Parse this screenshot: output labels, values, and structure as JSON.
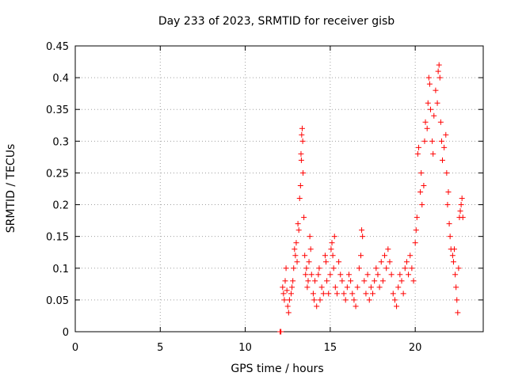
{
  "chart_data": {
    "type": "scatter",
    "title": "Day 233 of 2023, SRMTID for receiver gisb",
    "xlabel": "GPS time / hours",
    "ylabel": "SRMTID / TECUs",
    "xlim": [
      0,
      24
    ],
    "ylim": [
      0,
      0.45
    ],
    "x_ticks": [
      0,
      5,
      10,
      15,
      20
    ],
    "y_ticks": [
      0,
      0.05,
      0.1,
      0.15,
      0.2,
      0.25,
      0.3,
      0.35,
      0.4,
      0.45
    ],
    "x_tick_labels": [
      "0",
      "5",
      "10",
      "15",
      "20"
    ],
    "y_tick_labels": [
      "0",
      "0.05",
      "0.1",
      "0.15",
      "0.2",
      "0.25",
      "0.3",
      "0.35",
      "0.4",
      "0.45"
    ],
    "grid": true,
    "marker": "+",
    "color": "#ff0000",
    "series": [
      {
        "name": "SRMTID",
        "points": [
          [
            12.05,
            0.0
          ],
          [
            12.1,
            0.0
          ],
          [
            12.2,
            0.07
          ],
          [
            12.25,
            0.06
          ],
          [
            12.3,
            0.05
          ],
          [
            12.35,
            0.08
          ],
          [
            12.4,
            0.1
          ],
          [
            12.45,
            0.065
          ],
          [
            12.5,
            0.04
          ],
          [
            12.55,
            0.03
          ],
          [
            12.6,
            0.05
          ],
          [
            12.7,
            0.06
          ],
          [
            12.75,
            0.07
          ],
          [
            12.8,
            0.08
          ],
          [
            12.85,
            0.1
          ],
          [
            12.9,
            0.13
          ],
          [
            12.95,
            0.12
          ],
          [
            13.0,
            0.14
          ],
          [
            13.05,
            0.11
          ],
          [
            13.1,
            0.17
          ],
          [
            13.15,
            0.16
          ],
          [
            13.2,
            0.21
          ],
          [
            13.25,
            0.23
          ],
          [
            13.28,
            0.28
          ],
          [
            13.3,
            0.27
          ],
          [
            13.32,
            0.31
          ],
          [
            13.35,
            0.32
          ],
          [
            13.38,
            0.3
          ],
          [
            13.4,
            0.25
          ],
          [
            13.45,
            0.18
          ],
          [
            13.5,
            0.12
          ],
          [
            13.55,
            0.09
          ],
          [
            13.6,
            0.1
          ],
          [
            13.65,
            0.07
          ],
          [
            13.7,
            0.08
          ],
          [
            13.75,
            0.11
          ],
          [
            13.8,
            0.15
          ],
          [
            13.85,
            0.13
          ],
          [
            13.9,
            0.09
          ],
          [
            14.0,
            0.06
          ],
          [
            14.05,
            0.05
          ],
          [
            14.1,
            0.08
          ],
          [
            14.2,
            0.04
          ],
          [
            14.3,
            0.09
          ],
          [
            14.35,
            0.1
          ],
          [
            14.4,
            0.05
          ],
          [
            14.5,
            0.07
          ],
          [
            14.6,
            0.06
          ],
          [
            14.7,
            0.12
          ],
          [
            14.75,
            0.11
          ],
          [
            14.8,
            0.08
          ],
          [
            14.9,
            0.06
          ],
          [
            15.0,
            0.09
          ],
          [
            15.05,
            0.13
          ],
          [
            15.1,
            0.14
          ],
          [
            15.15,
            0.12
          ],
          [
            15.2,
            0.1
          ],
          [
            15.25,
            0.15
          ],
          [
            15.3,
            0.07
          ],
          [
            15.4,
            0.06
          ],
          [
            15.5,
            0.11
          ],
          [
            15.6,
            0.09
          ],
          [
            15.7,
            0.08
          ],
          [
            15.8,
            0.06
          ],
          [
            15.9,
            0.05
          ],
          [
            16.0,
            0.07
          ],
          [
            16.1,
            0.09
          ],
          [
            16.2,
            0.08
          ],
          [
            16.3,
            0.06
          ],
          [
            16.4,
            0.05
          ],
          [
            16.5,
            0.04
          ],
          [
            16.6,
            0.07
          ],
          [
            16.7,
            0.1
          ],
          [
            16.8,
            0.12
          ],
          [
            16.85,
            0.16
          ],
          [
            16.9,
            0.15
          ],
          [
            17.0,
            0.08
          ],
          [
            17.1,
            0.06
          ],
          [
            17.2,
            0.09
          ],
          [
            17.3,
            0.05
          ],
          [
            17.4,
            0.07
          ],
          [
            17.5,
            0.06
          ],
          [
            17.6,
            0.08
          ],
          [
            17.7,
            0.1
          ],
          [
            17.8,
            0.09
          ],
          [
            17.9,
            0.07
          ],
          [
            18.0,
            0.11
          ],
          [
            18.1,
            0.08
          ],
          [
            18.2,
            0.12
          ],
          [
            18.3,
            0.1
          ],
          [
            18.4,
            0.13
          ],
          [
            18.5,
            0.11
          ],
          [
            18.6,
            0.09
          ],
          [
            18.7,
            0.06
          ],
          [
            18.8,
            0.05
          ],
          [
            18.9,
            0.04
          ],
          [
            19.0,
            0.07
          ],
          [
            19.1,
            0.09
          ],
          [
            19.2,
            0.08
          ],
          [
            19.3,
            0.06
          ],
          [
            19.4,
            0.1
          ],
          [
            19.5,
            0.11
          ],
          [
            19.6,
            0.09
          ],
          [
            19.7,
            0.12
          ],
          [
            19.8,
            0.1
          ],
          [
            19.9,
            0.08
          ],
          [
            20.0,
            0.14
          ],
          [
            20.05,
            0.16
          ],
          [
            20.1,
            0.18
          ],
          [
            20.15,
            0.28
          ],
          [
            20.2,
            0.29
          ],
          [
            20.3,
            0.22
          ],
          [
            20.35,
            0.25
          ],
          [
            20.4,
            0.2
          ],
          [
            20.5,
            0.23
          ],
          [
            20.55,
            0.3
          ],
          [
            20.6,
            0.33
          ],
          [
            20.7,
            0.32
          ],
          [
            20.75,
            0.36
          ],
          [
            20.8,
            0.4
          ],
          [
            20.85,
            0.39
          ],
          [
            20.9,
            0.35
          ],
          [
            21.0,
            0.3
          ],
          [
            21.05,
            0.28
          ],
          [
            21.1,
            0.34
          ],
          [
            21.2,
            0.38
          ],
          [
            21.3,
            0.36
          ],
          [
            21.35,
            0.41
          ],
          [
            21.4,
            0.42
          ],
          [
            21.45,
            0.4
          ],
          [
            21.5,
            0.33
          ],
          [
            21.55,
            0.3
          ],
          [
            21.6,
            0.27
          ],
          [
            21.7,
            0.29
          ],
          [
            21.8,
            0.31
          ],
          [
            21.85,
            0.25
          ],
          [
            21.9,
            0.2
          ],
          [
            21.95,
            0.22
          ],
          [
            22.0,
            0.17
          ],
          [
            22.05,
            0.15
          ],
          [
            22.1,
            0.13
          ],
          [
            22.2,
            0.12
          ],
          [
            22.25,
            0.11
          ],
          [
            22.3,
            0.13
          ],
          [
            22.35,
            0.09
          ],
          [
            22.4,
            0.07
          ],
          [
            22.45,
            0.05
          ],
          [
            22.5,
            0.03
          ],
          [
            22.55,
            0.1
          ],
          [
            22.6,
            0.18
          ],
          [
            22.65,
            0.19
          ],
          [
            22.7,
            0.2
          ],
          [
            22.75,
            0.21
          ],
          [
            22.8,
            0.18
          ]
        ]
      }
    ]
  }
}
